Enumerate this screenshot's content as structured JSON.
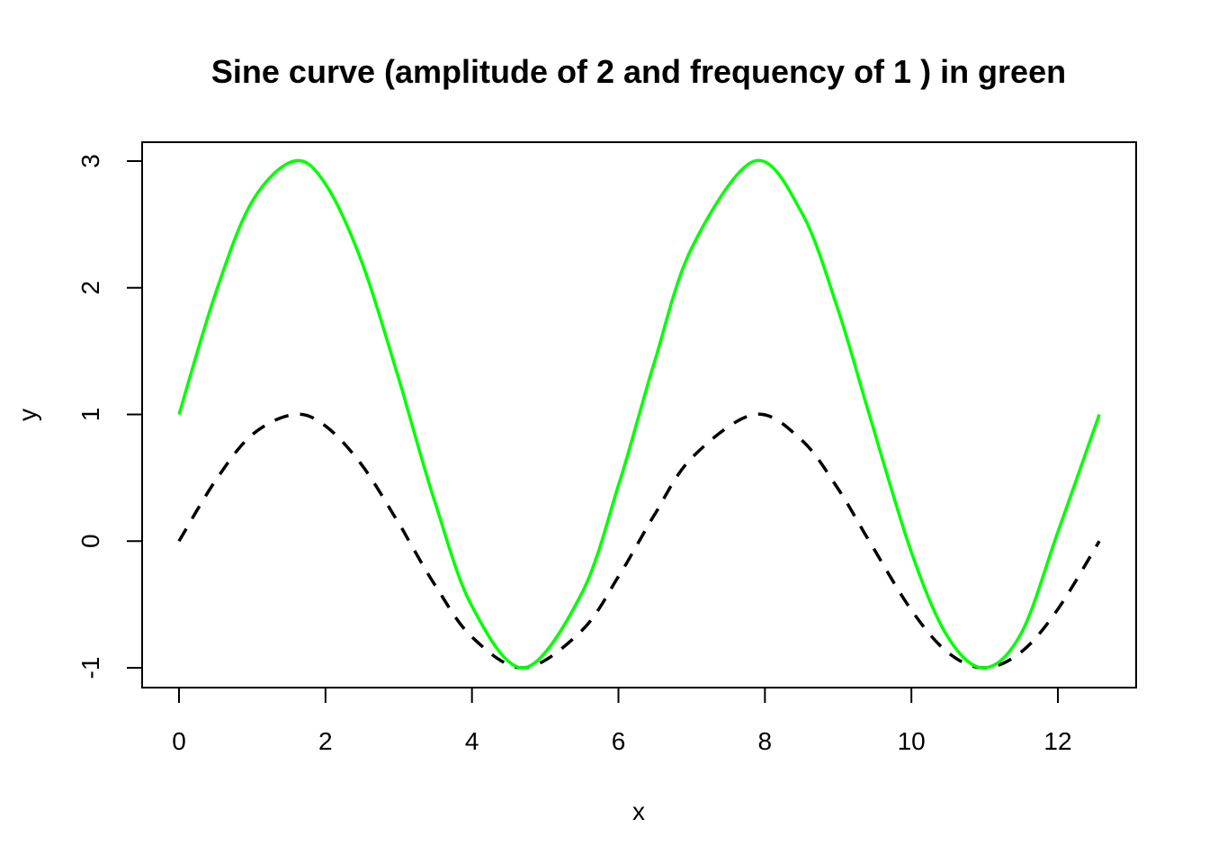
{
  "chart_data": {
    "type": "line",
    "title": "Sine curve (amplitude of 2 and frequency of 1 ) in green",
    "xlabel": "x",
    "ylabel": "y",
    "xlim": [
      0,
      12.566
    ],
    "ylim": [
      -1,
      3
    ],
    "x_ticks": [
      0,
      2,
      4,
      6,
      8,
      10,
      12
    ],
    "x_tick_labels": [
      "0",
      "2",
      "4",
      "6",
      "8",
      "10",
      "12"
    ],
    "y_ticks": [
      -1,
      0,
      1,
      2,
      3
    ],
    "y_tick_labels": [
      "-1",
      "0",
      "1",
      "2",
      "3"
    ],
    "grid": false,
    "legend": "none",
    "series": [
      {
        "color": "#00ff00",
        "style": "solid",
        "x": [
          0,
          0.5,
          1.0,
          1.5708,
          2.0,
          2.5,
          3.0,
          3.1416,
          3.5,
          4.0,
          4.7124,
          5.5,
          6.0,
          6.2832,
          6.5,
          7.0,
          7.854,
          8.5,
          9.0,
          9.4248,
          10.0,
          10.5,
          10.9956,
          11.5,
          12.0,
          12.566
        ],
        "values": [
          1.0,
          1.959,
          2.683,
          3.0,
          2.819,
          2.197,
          1.282,
          1.0,
          0.298,
          -0.514,
          -1.0,
          -0.411,
          0.441,
          1.0,
          1.43,
          2.314,
          3.0,
          2.596,
          1.824,
          1.0,
          -0.088,
          -0.759,
          -1.0,
          -0.726,
          0.073,
          1.0
        ]
      },
      {
        "color": "#000000",
        "style": "dashed",
        "x": [
          0,
          0.5,
          1.0,
          1.5708,
          2.0,
          2.5,
          3.0,
          3.1416,
          3.5,
          4.0,
          4.7124,
          5.5,
          6.0,
          6.2832,
          6.5,
          7.0,
          7.854,
          8.5,
          9.0,
          9.4248,
          10.0,
          10.5,
          10.9956,
          11.5,
          12.0,
          12.566
        ],
        "values": [
          0.0,
          0.479,
          0.841,
          1.0,
          0.909,
          0.598,
          0.141,
          0.0,
          -0.351,
          -0.757,
          -1.0,
          -0.706,
          -0.279,
          0.0,
          0.215,
          0.657,
          1.0,
          0.798,
          0.412,
          0.0,
          -0.544,
          -0.88,
          -1.0,
          -0.875,
          -0.537,
          0.0
        ]
      }
    ]
  }
}
